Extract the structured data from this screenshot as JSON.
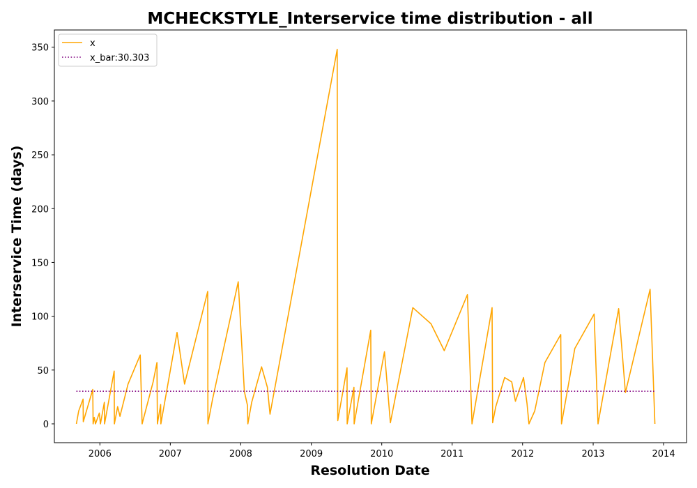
{
  "chart_data": {
    "type": "line",
    "title": "MCHECKSTYLE_Interservice time distribution - all",
    "xlabel": "Resolution Date",
    "ylabel": "Interservice Time (days)",
    "xlim": [
      "2005-05-10",
      "2014-04-30"
    ],
    "ylim": [
      -17.5,
      366
    ],
    "x_ticks": [
      "2006",
      "2007",
      "2008",
      "2009",
      "2010",
      "2011",
      "2012",
      "2013",
      "2014"
    ],
    "y_ticks": [
      0,
      50,
      100,
      150,
      200,
      250,
      300,
      350
    ],
    "grid": false,
    "legend_position": "top-left",
    "colors": {
      "x": "#ffa500",
      "x_bar": "#800080"
    },
    "series": [
      {
        "name": "x",
        "style": "solid",
        "points": [
          [
            "2005-09-01",
            0
          ],
          [
            "2005-09-13",
            12
          ],
          [
            "2005-10-06",
            23
          ],
          [
            "2005-10-07",
            2
          ],
          [
            "2005-11-25",
            32
          ],
          [
            "2005-11-27",
            0
          ],
          [
            "2005-12-03",
            6
          ],
          [
            "2005-12-09",
            0
          ],
          [
            "2005-12-29",
            10
          ],
          [
            "2006-01-04",
            0
          ],
          [
            "2006-01-24",
            20
          ],
          [
            "2006-01-25",
            0
          ],
          [
            "2006-03-16",
            49
          ],
          [
            "2006-03-17",
            0
          ],
          [
            "2006-04-03",
            16
          ],
          [
            "2006-04-15",
            7
          ],
          [
            "2006-05-27",
            37
          ],
          [
            "2006-07-29",
            64
          ],
          [
            "2006-08-08",
            0
          ],
          [
            "2006-10-04",
            39
          ],
          [
            "2006-10-24",
            57
          ],
          [
            "2006-10-26",
            0
          ],
          [
            "2006-11-12",
            18
          ],
          [
            "2006-11-13",
            0
          ],
          [
            "2007-02-05",
            85
          ],
          [
            "2007-03-16",
            37
          ],
          [
            "2007-07-14",
            123
          ],
          [
            "2007-07-15",
            0
          ],
          [
            "2007-08-08",
            23
          ],
          [
            "2007-12-19",
            132
          ],
          [
            "2008-01-20",
            30
          ],
          [
            "2008-02-05",
            17
          ],
          [
            "2008-02-07",
            0
          ],
          [
            "2008-02-27",
            20
          ],
          [
            "2008-04-18",
            53
          ],
          [
            "2008-05-18",
            34
          ],
          [
            "2008-06-01",
            9
          ],
          [
            "2009-05-15",
            348
          ],
          [
            "2009-05-18",
            3
          ],
          [
            "2009-07-05",
            52
          ],
          [
            "2009-07-06",
            0
          ],
          [
            "2009-08-10",
            34
          ],
          [
            "2009-08-11",
            0
          ],
          [
            "2009-11-05",
            87
          ],
          [
            "2009-11-08",
            0
          ],
          [
            "2010-01-15",
            67
          ],
          [
            "2010-02-15",
            1
          ],
          [
            "2010-06-11",
            108
          ],
          [
            "2010-09-13",
            93
          ],
          [
            "2010-11-21",
            68
          ],
          [
            "2011-03-21",
            120
          ],
          [
            "2011-04-14",
            0
          ],
          [
            "2011-07-27",
            108
          ],
          [
            "2011-07-30",
            1
          ],
          [
            "2011-08-15",
            16
          ],
          [
            "2011-09-30",
            43
          ],
          [
            "2011-11-06",
            39
          ],
          [
            "2011-11-25",
            21
          ],
          [
            "2012-01-06",
            43
          ],
          [
            "2012-01-24",
            19
          ],
          [
            "2012-02-03",
            0
          ],
          [
            "2012-03-04",
            12
          ],
          [
            "2012-04-26",
            57
          ],
          [
            "2012-07-17",
            83
          ],
          [
            "2012-07-21",
            0
          ],
          [
            "2012-09-28",
            70
          ],
          [
            "2013-01-06",
            102
          ],
          [
            "2013-01-26",
            0
          ],
          [
            "2013-05-13",
            107
          ],
          [
            "2013-06-17",
            29
          ],
          [
            "2013-10-23",
            125
          ],
          [
            "2013-11-17",
            0
          ]
        ]
      },
      {
        "name": "x_bar:30.303",
        "style": "dotted",
        "points": [
          [
            "2005-09-01",
            30.303
          ],
          [
            "2013-11-17",
            30.303
          ]
        ]
      }
    ]
  }
}
